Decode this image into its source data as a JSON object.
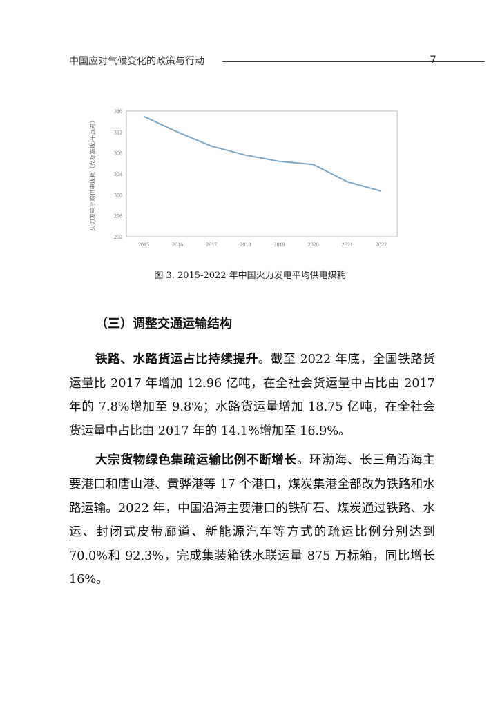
{
  "header": {
    "title": "中国应对气候变化的政策与行动",
    "page_number": "7"
  },
  "chart_data": {
    "type": "line",
    "ylabel": "火力发电平均供电煤耗（克标准煤/千瓦时）",
    "xlabel": "",
    "categories": [
      "2015",
      "2016",
      "2017",
      "2018",
      "2019",
      "2020",
      "2021",
      "2022"
    ],
    "values": [
      315,
      312,
      309.3,
      307.6,
      306.4,
      305.8,
      302.5,
      300.7
    ],
    "ylim": [
      292,
      316
    ],
    "yticks": [
      "292",
      "296",
      "300",
      "304",
      "308",
      "312",
      "316"
    ],
    "grid": false,
    "line_color": "#7aa6c8"
  },
  "caption": "图  3. 2015-2022 年中国火力发电平均供电煤耗",
  "section": {
    "heading": "（三）调整交通运输结构"
  },
  "paragraphs": [
    {
      "lead": "铁路、水路货运占比持续提升",
      "text": "。截至 2022 年底，全国铁路货运量比 2017 年增加 12.96 亿吨，在全社会货运量中占比由 2017 年的 7.8%增加至 9.8%；水路货运量增加 18.75 亿吨，在全社会货运量中占比由 2017 年的 14.1%增加至 16.9%。"
    },
    {
      "lead": "大宗货物绿色集疏运输比例不断增长",
      "text": "。环渤海、长三角沿海主要港口和唐山港、黄骅港等 17 个港口，煤炭集港全部改为铁路和水路运输。2022 年，中国沿海主要港口的铁矿石、煤炭通过铁路、水运、封闭式皮带廊道、新能源汽车等方式的疏运比例分别达到 70.0%和 92.3%，完成集装箱铁水联运量 875 万标箱，同比增长 16%。"
    }
  ]
}
